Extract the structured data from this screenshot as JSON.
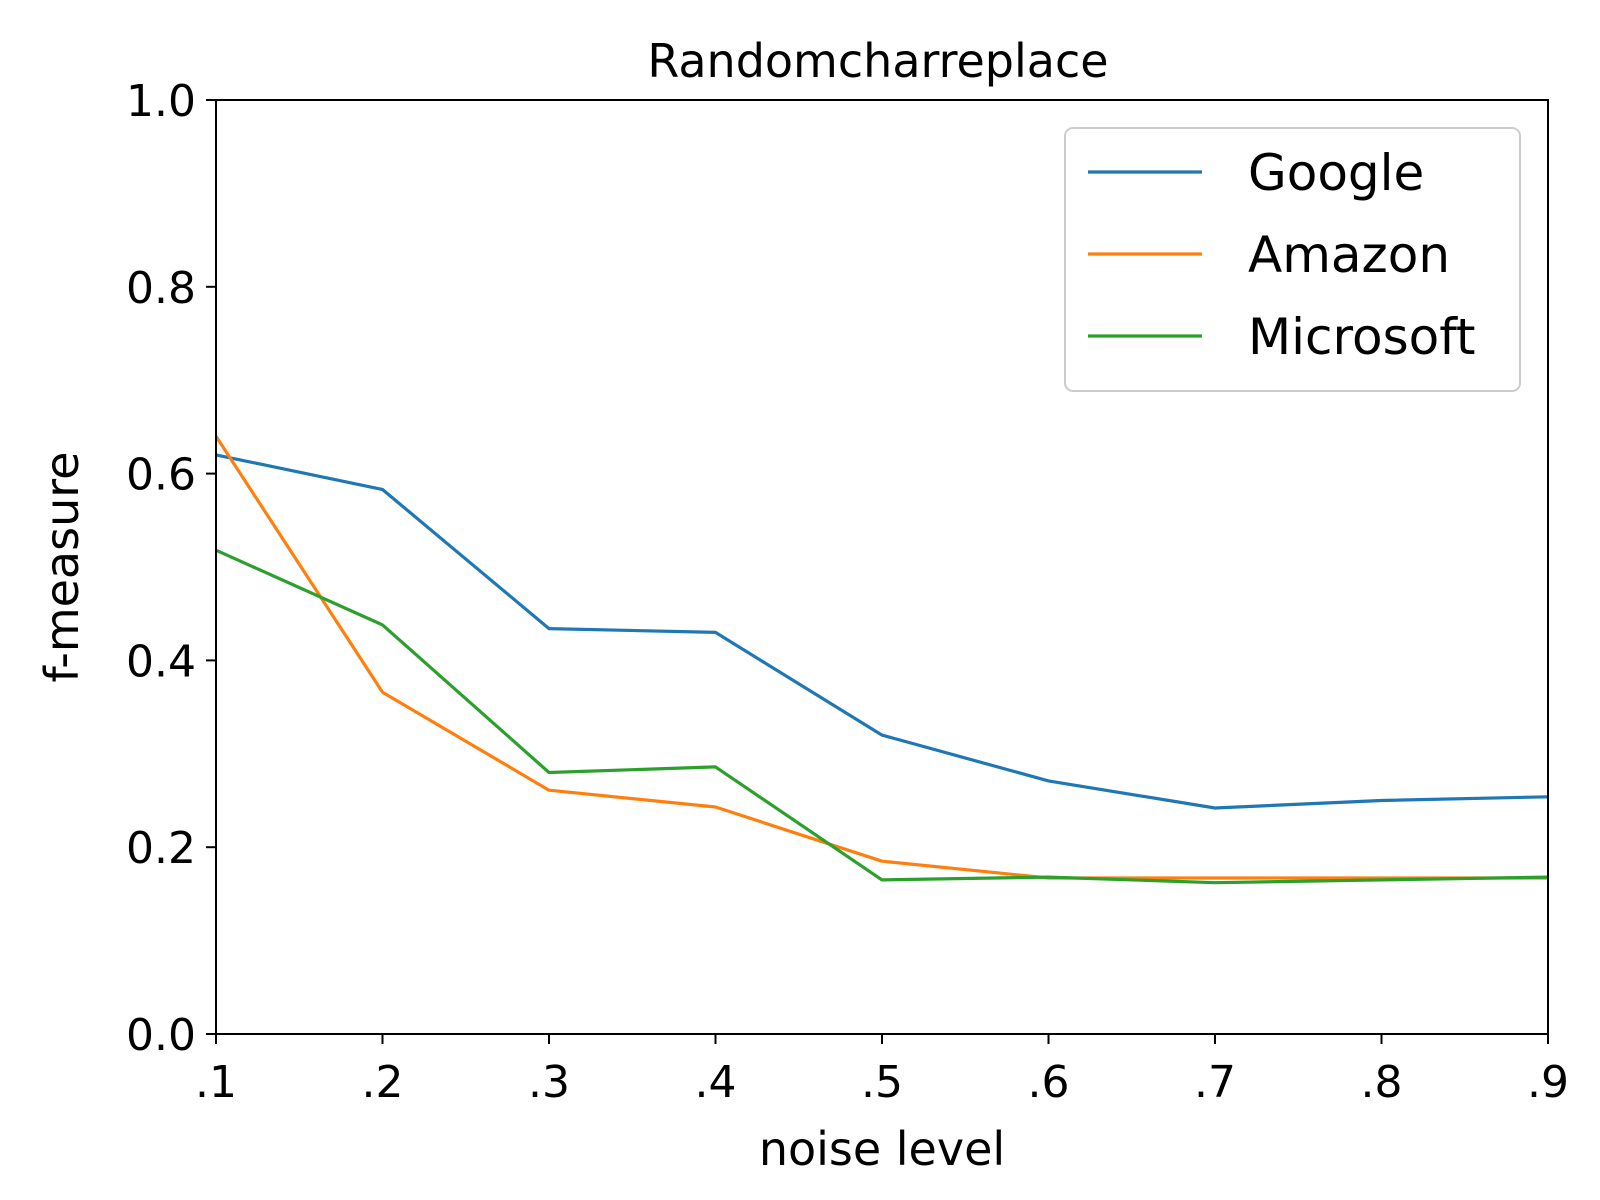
{
  "chart_data": {
    "type": "line",
    "title": "Randomcharreplace",
    "xlabel": "noise level",
    "ylabel": "f-measure",
    "categories": [
      ".1",
      ".2",
      ".3",
      ".4",
      ".5",
      ".6",
      ".7",
      ".8",
      ".9"
    ],
    "x": [
      0.1,
      0.2,
      0.3,
      0.4,
      0.5,
      0.6,
      0.7,
      0.8,
      0.9
    ],
    "xlim": [
      0.1,
      0.9
    ],
    "ylim": [
      0.0,
      1.0
    ],
    "yticks": [
      "0.0",
      "0.2",
      "0.4",
      "0.6",
      "0.8",
      "1.0"
    ],
    "grid": false,
    "legend_position": "top-right",
    "series": [
      {
        "name": "Google",
        "color": "#1f77b4",
        "values": [
          0.62,
          0.583,
          0.434,
          0.43,
          0.32,
          0.271,
          0.242,
          0.25,
          0.254
        ]
      },
      {
        "name": "Amazon",
        "color": "#ff7f0e",
        "values": [
          0.64,
          0.366,
          0.261,
          0.243,
          0.185,
          0.167,
          0.167,
          0.167,
          0.167
        ]
      },
      {
        "name": "Microsoft",
        "color": "#2ca02c",
        "values": [
          0.518,
          0.438,
          0.28,
          0.286,
          0.165,
          0.168,
          0.162,
          0.165,
          0.168
        ]
      }
    ]
  }
}
